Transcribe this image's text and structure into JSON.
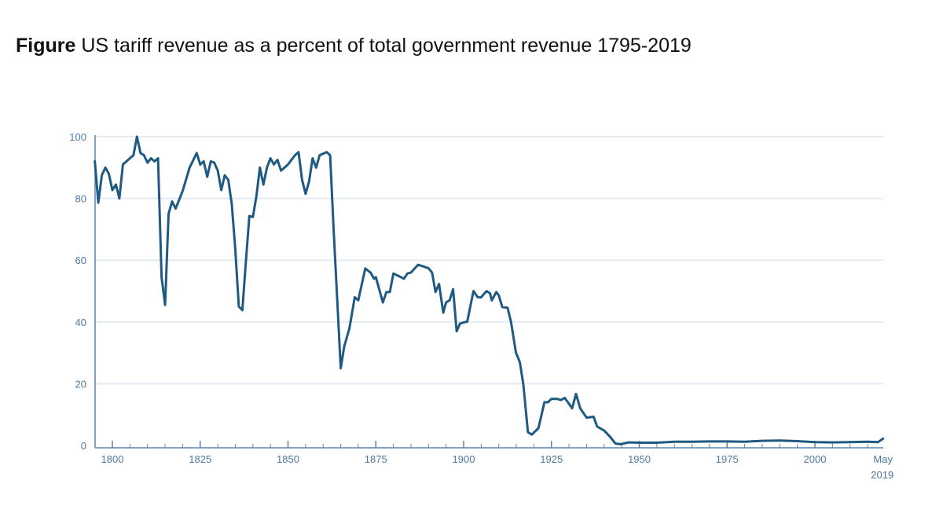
{
  "chart_data": {
    "type": "line",
    "title_prefix": "Figure",
    "title": "US tariff revenue as a percent of total government revenue 1795-2019",
    "xlabel": "",
    "ylabel": "",
    "xlim": [
      1795,
      2019.4
    ],
    "ylim": [
      0,
      100
    ],
    "grid": true,
    "yticks": [
      0,
      20,
      40,
      60,
      80,
      100
    ],
    "xticks": [
      {
        "value": 1800,
        "label": "1800"
      },
      {
        "value": 1825,
        "label": "1825"
      },
      {
        "value": 1850,
        "label": "1850"
      },
      {
        "value": 1875,
        "label": "1875"
      },
      {
        "value": 1900,
        "label": "1900"
      },
      {
        "value": 1925,
        "label": "1925"
      },
      {
        "value": 1950,
        "label": "1950"
      },
      {
        "value": 1975,
        "label": "1975"
      },
      {
        "value": 2000,
        "label": "2000"
      },
      {
        "value": 2019.4,
        "label": "May",
        "label2": "2019"
      }
    ],
    "colors": {
      "line": "#1f5a82",
      "axis": "#5b84ad",
      "grid": "#e4ebf3"
    },
    "x": [
      1795,
      1796,
      1797,
      1798,
      1799,
      1800,
      1801,
      1802,
      1803,
      1805,
      1806,
      1807,
      1808,
      1809,
      1810,
      1811,
      1812,
      1813,
      1814,
      1815,
      1816,
      1817,
      1818,
      1820,
      1822,
      1824,
      1825,
      1826,
      1827,
      1828,
      1829,
      1830,
      1831,
      1832,
      1833,
      1834,
      1835,
      1836,
      1837,
      1838,
      1839,
      1840,
      1841,
      1842,
      1843,
      1844,
      1845,
      1846,
      1847,
      1848,
      1850,
      1852,
      1853,
      1854,
      1855,
      1856,
      1857,
      1858,
      1859,
      1861,
      1862,
      1863,
      1865,
      1866,
      1867.5,
      1869,
      1870,
      1872,
      1873.5,
      1874.5,
      1875,
      1877,
      1878,
      1879,
      1880,
      1881.3,
      1883,
      1884,
      1885,
      1887,
      1888.5,
      1890,
      1891,
      1892,
      1893,
      1894.2,
      1895,
      1896,
      1897,
      1898,
      1899,
      1900.5,
      1901,
      1902.8,
      1904,
      1905,
      1906.5,
      1907.5,
      1908,
      1909.3,
      1910,
      1911,
      1912.5,
      1913.5,
      1914.9,
      1916,
      1917,
      1918.3,
      1919.4,
      1921.3,
      1923,
      1924,
      1925,
      1926.6,
      1927.7,
      1928.8,
      1930.9,
      1932,
      1933.2,
      1935,
      1937,
      1938,
      1940,
      1941.8,
      1943.2,
      1944.7,
      1947,
      1950,
      1955,
      1960,
      1965,
      1970,
      1975,
      1980,
      1985,
      1990,
      1995,
      2000,
      2005,
      2010,
      2015,
      2018,
      2019.4
    ],
    "y": [
      92,
      78.6,
      87.5,
      90,
      88,
      82.7,
      84.5,
      80,
      91,
      93,
      94,
      100,
      94.7,
      94,
      91.6,
      93,
      92,
      93,
      54.5,
      45.5,
      75,
      79,
      76.7,
      82.4,
      90,
      94.7,
      91,
      92,
      87,
      92,
      91.6,
      89,
      82.7,
      87.5,
      86,
      78,
      63.6,
      45,
      43.8,
      59.5,
      74.3,
      74,
      80.7,
      90,
      84.5,
      90,
      93,
      91,
      92.5,
      89,
      91,
      94,
      95,
      86,
      81.5,
      85.5,
      93,
      90,
      94,
      95,
      94,
      69.7,
      25,
      32,
      38,
      48,
      47,
      57.3,
      56,
      54,
      54.5,
      46.3,
      49.7,
      49.7,
      55.7,
      55,
      54,
      55.7,
      56,
      58.5,
      58,
      57.4,
      56,
      49.7,
      52.3,
      43,
      46.3,
      47,
      50.6,
      37,
      39.5,
      40,
      40,
      50,
      48,
      48,
      50,
      49.3,
      47,
      49.7,
      48.6,
      44.8,
      44.6,
      40,
      30,
      27,
      19.7,
      4.3,
      3.5,
      5.6,
      14,
      14,
      15.1,
      15.1,
      14.7,
      15.4,
      12,
      16.7,
      12,
      9,
      9.3,
      6.1,
      4.8,
      2.7,
      0.6,
      0.4,
      1,
      0.9,
      0.9,
      1.2,
      1.2,
      1.3,
      1.3,
      1.2,
      1.5,
      1.6,
      1.4,
      1.1,
      1.0,
      1.1,
      1.2,
      1.1,
      2.2
    ]
  }
}
